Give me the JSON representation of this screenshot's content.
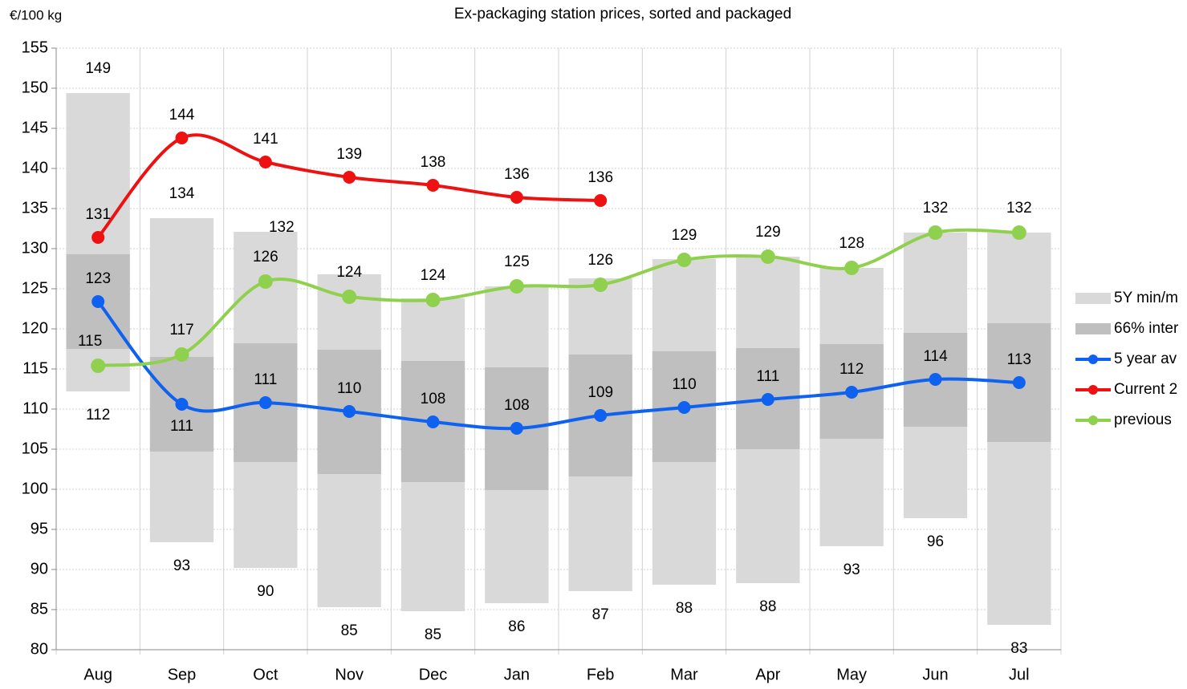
{
  "chart_data": {
    "type": "range-line",
    "title": "Ex-packaging station prices, sorted and packaged",
    "y_label": "€/100 kg",
    "categories": [
      "Aug",
      "Sep",
      "Oct",
      "Nov",
      "Dec",
      "Jan",
      "Feb",
      "Mar",
      "Apr",
      "May",
      "Jun",
      "Jul"
    ],
    "ylim": [
      80,
      155
    ],
    "yticks": [
      80,
      85,
      90,
      95,
      100,
      105,
      110,
      115,
      120,
      125,
      130,
      135,
      140,
      145,
      150,
      155
    ],
    "grid": true,
    "ranges": [
      {
        "name": "5Y min/m",
        "color": "#d9d9d9",
        "min": [
          112.2,
          93.4,
          90.2,
          85.3,
          84.8,
          85.8,
          87.3,
          88.1,
          88.3,
          92.9,
          96.4,
          83.1
        ],
        "max": [
          149.4,
          133.8,
          132.1,
          126.8,
          123.8,
          125.3,
          126.3,
          128.7,
          129.0,
          127.6,
          132.0,
          132.0
        ],
        "min_labels": [
          "112",
          "93",
          "90",
          "85",
          "85",
          "86",
          "87",
          "88",
          "88",
          "93",
          "96",
          "83"
        ],
        "max_labels": [
          "149",
          "134",
          "132",
          null,
          null,
          null,
          null,
          null,
          null,
          null,
          null,
          null
        ]
      },
      {
        "name": "66% inter",
        "color": "#bfbfbf",
        "min": [
          117.5,
          104.7,
          103.4,
          101.9,
          100.9,
          99.9,
          101.6,
          103.4,
          105.0,
          106.3,
          107.8,
          105.9
        ],
        "max": [
          129.3,
          116.5,
          118.2,
          117.4,
          116.0,
          115.2,
          116.8,
          117.2,
          117.6,
          118.1,
          119.5,
          120.7
        ]
      }
    ],
    "series": [
      {
        "name": "5 year av",
        "color": "#0f62f0",
        "values": [
          123.4,
          110.6,
          110.8,
          109.7,
          108.4,
          107.6,
          109.2,
          110.2,
          111.2,
          112.1,
          113.7,
          113.3
        ],
        "value_labels": [
          "123",
          "111",
          "111",
          "110",
          "108",
          "108",
          "109",
          "110",
          "111",
          "112",
          "114",
          "113"
        ]
      },
      {
        "name": "Current 2",
        "color": "#ee1111",
        "values": [
          131.4,
          143.8,
          140.8,
          138.9,
          137.9,
          136.4,
          136.0,
          null,
          null,
          null,
          null,
          null
        ],
        "value_labels": [
          "131",
          "144",
          "141",
          "139",
          "138",
          "136",
          "136",
          null,
          null,
          null,
          null,
          null
        ]
      },
      {
        "name": "previous",
        "color": "#8fd14f",
        "values": [
          115.4,
          116.8,
          125.9,
          124.0,
          123.6,
          125.3,
          125.5,
          128.6,
          129.0,
          127.6,
          132.0,
          132.0
        ],
        "value_labels": [
          "115",
          "117",
          "126",
          "124",
          "124",
          "125",
          "126",
          "129",
          "129",
          "128",
          "132",
          "132"
        ]
      }
    ],
    "legend": "right"
  }
}
